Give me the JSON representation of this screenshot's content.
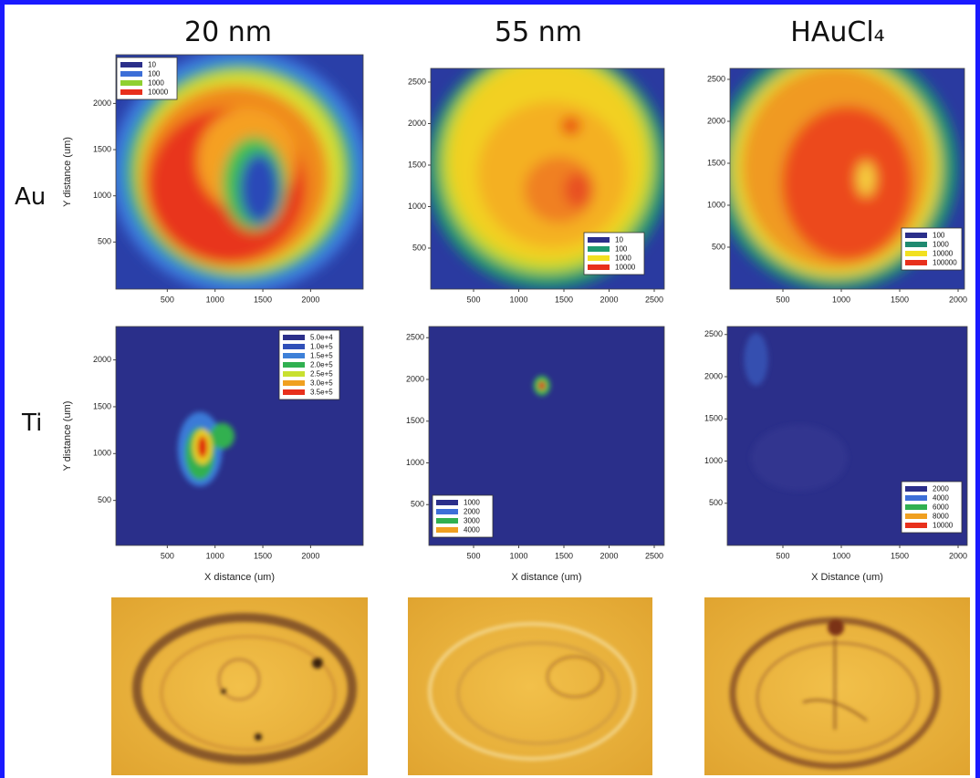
{
  "columns": [
    "20 nm",
    "55 nm",
    "HAuCl₄"
  ],
  "rows": [
    {
      "label": "Au",
      "panels": [
        {
          "y_label": "Y distance (um)",
          "yticks": [
            2000,
            1500,
            1000,
            500
          ],
          "xticks": [
            500,
            1000,
            1500,
            2000
          ],
          "legend": [
            {
              "label": "10",
              "color": "#2b2f8a"
            },
            {
              "label": "100",
              "color": "#3d6fd8"
            },
            {
              "label": "1000",
              "color": "#8fd030"
            },
            {
              "label": "10000",
              "color": "#e8301c"
            }
          ]
        },
        {
          "yticks": [
            2500,
            2000,
            1500,
            1000,
            500
          ],
          "xticks": [
            500,
            1000,
            1500,
            2000,
            2500
          ],
          "legend": [
            {
              "label": "10",
              "color": "#2b2f8a"
            },
            {
              "label": "100",
              "color": "#1f9a70"
            },
            {
              "label": "1000",
              "color": "#f2e020"
            },
            {
              "label": "10000",
              "color": "#e8301c"
            }
          ]
        },
        {
          "yticks": [
            2500,
            2000,
            1500,
            1000,
            500
          ],
          "xticks": [
            500,
            1000,
            1500,
            2000
          ],
          "legend": [
            {
              "label": "100",
              "color": "#2b2f8a"
            },
            {
              "label": "1000",
              "color": "#1f8a70"
            },
            {
              "label": "10000",
              "color": "#f2e020"
            },
            {
              "label": "100000",
              "color": "#e8301c"
            }
          ]
        }
      ]
    },
    {
      "label": "Ti",
      "panels": [
        {
          "y_label": "Y distance (um)",
          "x_label": "X distance (um)",
          "yticks": [
            2000,
            1500,
            1000,
            500
          ],
          "xticks": [
            500,
            1000,
            1500,
            2000
          ],
          "legend": [
            {
              "label": "5.0e+4",
              "color": "#2b2f8a"
            },
            {
              "label": "1.0e+5",
              "color": "#2f4fb8"
            },
            {
              "label": "1.5e+5",
              "color": "#3d80d8"
            },
            {
              "label": "2.0e+5",
              "color": "#30b050"
            },
            {
              "label": "2.5e+5",
              "color": "#c8e030"
            },
            {
              "label": "3.0e+5",
              "color": "#f0a020"
            },
            {
              "label": "3.5e+5",
              "color": "#e8301c"
            }
          ]
        },
        {
          "x_label": "X distance (um)",
          "yticks": [
            2500,
            2000,
            1500,
            1000,
            500
          ],
          "xticks": [
            500,
            1000,
            1500,
            2000,
            2500
          ],
          "legend": [
            {
              "label": "1000",
              "color": "#2b2f8a"
            },
            {
              "label": "2000",
              "color": "#3d6fd8"
            },
            {
              "label": "3000",
              "color": "#30b050"
            },
            {
              "label": "4000",
              "color": "#f0a020"
            }
          ]
        },
        {
          "x_label": "X Distance (um)",
          "yticks": [
            2500,
            2000,
            1500,
            1000,
            500
          ],
          "xticks": [
            500,
            1000,
            1500,
            2000
          ],
          "legend": [
            {
              "label": "2000",
              "color": "#2b2f8a"
            },
            {
              "label": "4000",
              "color": "#3d6fd8"
            },
            {
              "label": "6000",
              "color": "#30b050"
            },
            {
              "label": "8000",
              "color": "#f0a020"
            },
            {
              "label": "10000",
              "color": "#e8301c"
            }
          ]
        }
      ]
    }
  ]
}
